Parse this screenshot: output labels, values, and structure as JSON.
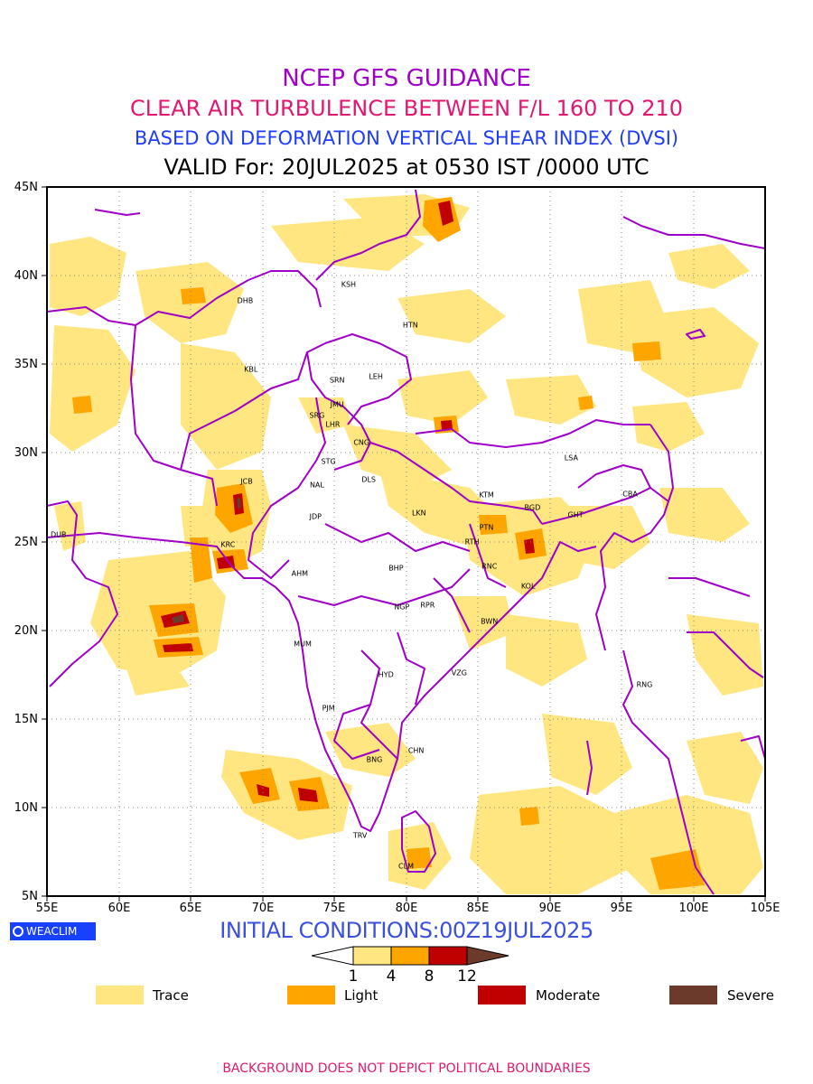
{
  "titles": {
    "line1": "NCEP GFS GUIDANCE",
    "line2": "CLEAR AIR TURBULENCE BETWEEN F/L 160 TO 210",
    "line3": "BASED ON DEFORMATION VERTICAL SHEAR INDEX (DVSI)",
    "line4": "VALID For: 20JUL2025 at 0530 IST /0000 UTC"
  },
  "axes": {
    "lat_labels": [
      "45N",
      "40N",
      "35N",
      "30N",
      "25N",
      "20N",
      "15N",
      "10N",
      "5N"
    ],
    "lon_labels": [
      "55E",
      "60E",
      "65E",
      "70E",
      "75E",
      "80E",
      "85E",
      "90E",
      "95E",
      "100E",
      "105E"
    ]
  },
  "cities": [
    {
      "code": "KSH",
      "lon": 76.0,
      "lat": 39.5
    },
    {
      "code": "DHB",
      "lon": 68.8,
      "lat": 38.6
    },
    {
      "code": "HTN",
      "lon": 80.3,
      "lat": 37.2
    },
    {
      "code": "KBL",
      "lon": 69.2,
      "lat": 34.7
    },
    {
      "code": "SRN",
      "lon": 75.2,
      "lat": 34.1
    },
    {
      "code": "LEH",
      "lon": 77.9,
      "lat": 34.3
    },
    {
      "code": "JMU",
      "lon": 75.2,
      "lat": 32.7
    },
    {
      "code": "SRG",
      "lon": 73.8,
      "lat": 32.1
    },
    {
      "code": "LHR",
      "lon": 74.9,
      "lat": 31.6
    },
    {
      "code": "CNG",
      "lon": 76.9,
      "lat": 30.6
    },
    {
      "code": "STG",
      "lon": 74.6,
      "lat": 29.5
    },
    {
      "code": "LSA",
      "lon": 91.5,
      "lat": 29.7
    },
    {
      "code": "JCB",
      "lon": 68.9,
      "lat": 28.4
    },
    {
      "code": "NAL",
      "lon": 73.8,
      "lat": 28.2
    },
    {
      "code": "DLS",
      "lon": 77.4,
      "lat": 28.5
    },
    {
      "code": "KTM",
      "lon": 85.6,
      "lat": 27.6
    },
    {
      "code": "CBA",
      "lon": 95.6,
      "lat": 27.7
    },
    {
      "code": "BGD",
      "lon": 88.8,
      "lat": 26.9
    },
    {
      "code": "GHT",
      "lon": 91.8,
      "lat": 26.5
    },
    {
      "code": "JDP",
      "lon": 73.7,
      "lat": 26.4
    },
    {
      "code": "LKN",
      "lon": 80.9,
      "lat": 26.6
    },
    {
      "code": "PTN",
      "lon": 85.6,
      "lat": 25.8
    },
    {
      "code": "DUB",
      "lon": 55.8,
      "lat": 25.4
    },
    {
      "code": "RTH",
      "lon": 84.6,
      "lat": 25.0
    },
    {
      "code": "KRC",
      "lon": 67.6,
      "lat": 24.8
    },
    {
      "code": "BHP",
      "lon": 79.3,
      "lat": 23.5
    },
    {
      "code": "AHM",
      "lon": 72.6,
      "lat": 23.2
    },
    {
      "code": "RNC",
      "lon": 85.8,
      "lat": 23.6
    },
    {
      "code": "KOL",
      "lon": 88.5,
      "lat": 22.5
    },
    {
      "code": "NGP",
      "lon": 79.7,
      "lat": 21.3
    },
    {
      "code": "RPR",
      "lon": 81.5,
      "lat": 21.4
    },
    {
      "code": "BWN",
      "lon": 85.8,
      "lat": 20.5
    },
    {
      "code": "MUM",
      "lon": 72.8,
      "lat": 19.2
    },
    {
      "code": "HYD",
      "lon": 78.6,
      "lat": 17.5
    },
    {
      "code": "VZG",
      "lon": 83.7,
      "lat": 17.6
    },
    {
      "code": "RNG",
      "lon": 96.6,
      "lat": 16.9
    },
    {
      "code": "PJM",
      "lon": 74.6,
      "lat": 15.6
    },
    {
      "code": "CHN",
      "lon": 80.7,
      "lat": 13.2
    },
    {
      "code": "BNG",
      "lon": 77.8,
      "lat": 12.7
    },
    {
      "code": "TRV",
      "lon": 76.8,
      "lat": 8.4
    },
    {
      "code": "CLM",
      "lon": 80.0,
      "lat": 6.7
    }
  ],
  "logo": {
    "text": "WEACLIM"
  },
  "initial_conditions": "INITIAL CONDITIONS:00Z19JUL2025",
  "colorbar": {
    "labels": [
      "1",
      "4",
      "8",
      "12"
    ],
    "colors": [
      "#ffe680",
      "#ffa500",
      "#c00000",
      "#6b3a2a"
    ]
  },
  "legend": [
    {
      "label": "Trace",
      "color": "#ffe680"
    },
    {
      "label": "Light",
      "color": "#ffa500"
    },
    {
      "label": "Moderate",
      "color": "#c00000"
    },
    {
      "label": "Severe",
      "color": "#6b3a2a"
    }
  ],
  "colors": {
    "boundary": "#a000c8",
    "grid": "#888888"
  },
  "footer": "BACKGROUND DOES NOT DEPICT POLITICAL BOUNDARIES"
}
